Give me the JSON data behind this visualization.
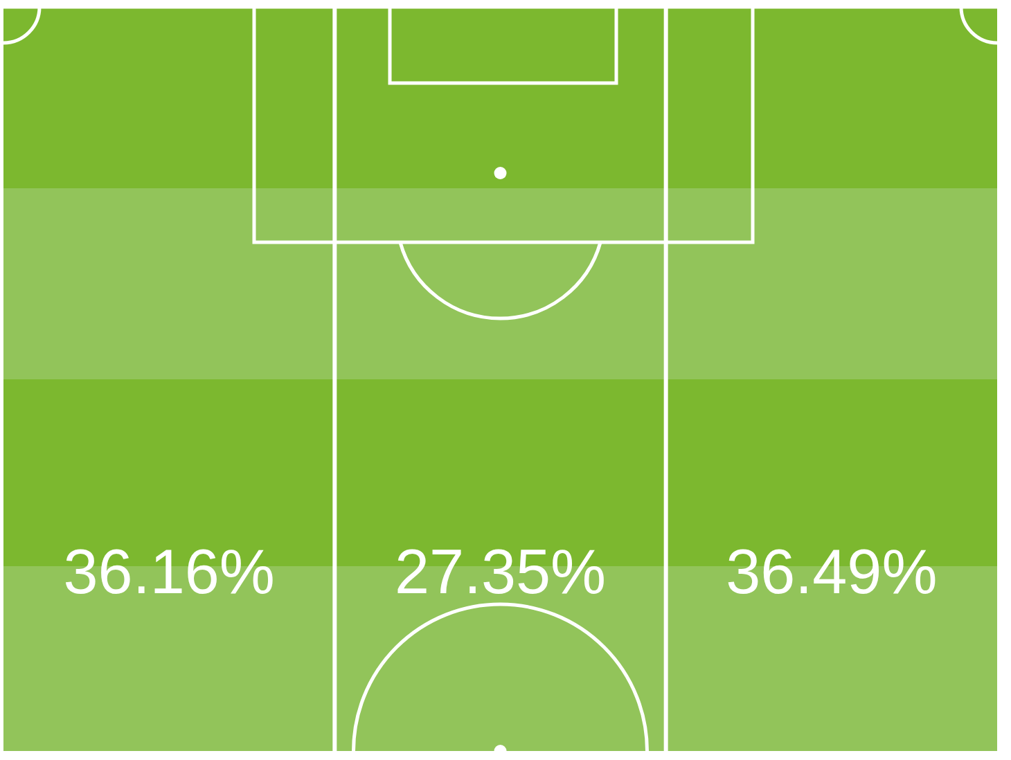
{
  "chart_data": {
    "type": "other",
    "categories": [
      null,
      null,
      null
    ],
    "values": [
      36.16,
      27.35,
      36.49
    ],
    "value_labels": [
      "36.16%",
      "27.35%",
      "36.49%"
    ]
  }
}
